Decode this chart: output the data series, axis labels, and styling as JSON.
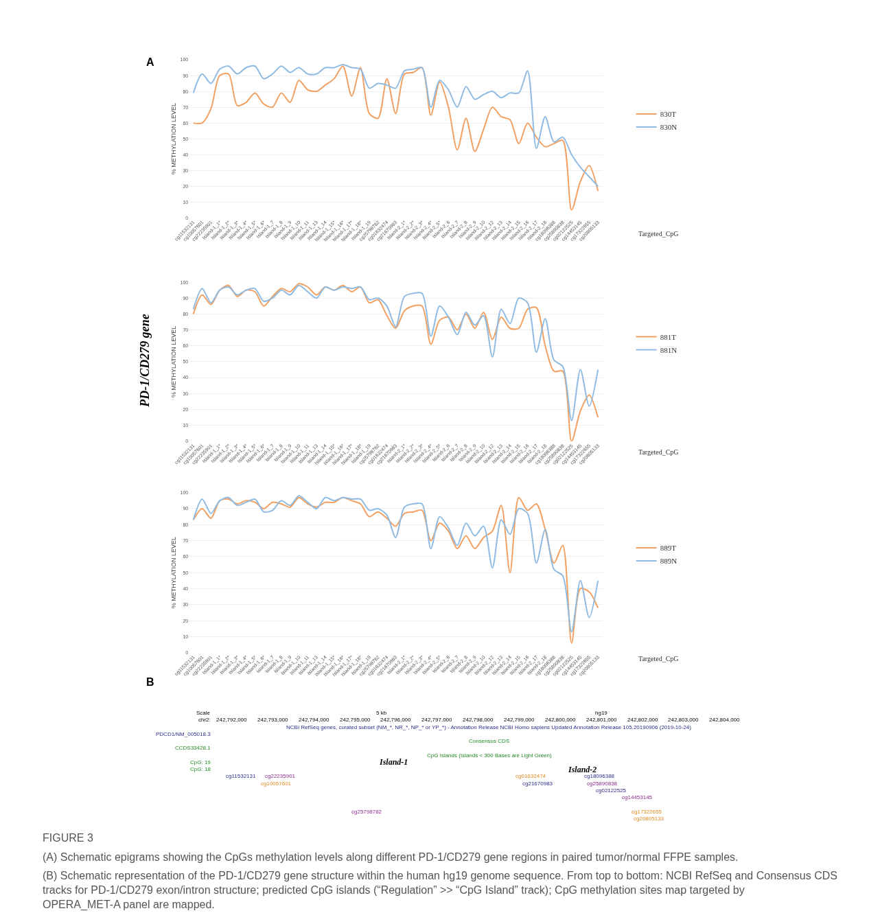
{
  "chart_data": [
    {
      "type": "line",
      "ylabel": "% METHYLATION LEVEL",
      "xlabel": "Targeted_CpG",
      "ylim": [
        0,
        100
      ],
      "yticks": [
        0,
        10,
        20,
        30,
        40,
        50,
        60,
        70,
        80,
        90,
        100
      ],
      "grid": "y",
      "legend": "right",
      "annotations": [
        "A",
        "PD-1/CD279 gene"
      ],
      "categories": [
        "cg11532131",
        "cg10057601",
        "cg22235901",
        "Island-1_1*",
        "Island-1_2*",
        "Island-1_3*",
        "Island-1_4*",
        "Island-1_5*",
        "Island-1_6*",
        "Island-1_7",
        "Island-1_8",
        "Island-1_9",
        "Island-1_10",
        "Island-1_11",
        "Island-1_13",
        "Island-1_14",
        "Island-1_15*",
        "Island-1_16*",
        "Island-1_17*",
        "Island-1_18*",
        "Island-1_19",
        "cg25798782",
        "cg01632474",
        "cg21670983",
        "Island-2_1*",
        "Island-2_2*",
        "Island-2_3*",
        "Island-2_4*",
        "Island-2_5*",
        "Island-2_6",
        "Island-2_7",
        "Island-2_8",
        "Island-2_9",
        "Island-2_10",
        "Island-2_12",
        "Island-2_13",
        "Island-2_14",
        "Island-2_15",
        "Island-2_16",
        "Island-2_17",
        "Island-2_18",
        "cg18096388",
        "cg25890838",
        "cg02122525",
        "cg14453145",
        "cg17322655",
        "cg20805133"
      ],
      "series": [
        {
          "name": "830T",
          "color": "#f2a061",
          "values": [
            60,
            60,
            69,
            90,
            91,
            71,
            73,
            79,
            72,
            70,
            79,
            73,
            87,
            81,
            80,
            84,
            88,
            96,
            77,
            95,
            66,
            63,
            88,
            66,
            91,
            92,
            95,
            65,
            86,
            70,
            43,
            63,
            42,
            56,
            70,
            64,
            62,
            47,
            60,
            51,
            45,
            47,
            49,
            5,
            23,
            33,
            17
          ]
        },
        {
          "name": "830N",
          "color": "#8fbbe3",
          "values": [
            79,
            91,
            85,
            94,
            96,
            91,
            95,
            96,
            88,
            91,
            96,
            92,
            95,
            91,
            91,
            95,
            95,
            97,
            95,
            94,
            82,
            85,
            84,
            82,
            93,
            94,
            95,
            70,
            87,
            81,
            70,
            83,
            75,
            78,
            80,
            76,
            79,
            79,
            93,
            44,
            64,
            48,
            51,
            40,
            32,
            26,
            20
          ]
        }
      ]
    },
    {
      "type": "line",
      "ylabel": "% METHYLATION LEVEL",
      "xlabel": "Targeted_CpG",
      "ylim": [
        0,
        100
      ],
      "yticks": [
        0,
        10,
        20,
        30,
        40,
        50,
        60,
        70,
        80,
        90,
        100
      ],
      "grid": "y",
      "legend": "right",
      "categories": [
        "cg11532131",
        "cg10057601",
        "cg22235901",
        "Island-1_1*",
        "Island-1_2*",
        "Island-1_3*",
        "Island-1_4*",
        "Island-1_5*",
        "Island-1_6*",
        "Island-1_7",
        "Island-1_8",
        "Island-1_9",
        "Island-1_10",
        "Island-1_11",
        "Island-1_13",
        "Island-1_14",
        "Island-1_15*",
        "Island-1_16*",
        "Island-1_17*",
        "Island-1_18*",
        "Island-1_19",
        "cg25798782",
        "cg01632474",
        "cg21670983",
        "Island-2_1*",
        "Island-2_2*",
        "Island-2_3*",
        "Island-2_4*",
        "Island-2_5*",
        "Island-2_6",
        "Island-2_7",
        "Island-2_8",
        "Island-2_9",
        "Island-2_10",
        "Island-2_12",
        "Island-2_13",
        "Island-2_14",
        "Island-2_15",
        "Island-2_16",
        "Island-2_17",
        "Island-2_18",
        "cg18096388",
        "cg25890838",
        "cg02122525",
        "cg14453145",
        "cg17322655",
        "cg20805133"
      ],
      "series": [
        {
          "name": "881T",
          "color": "#f2a061",
          "values": [
            80,
            92,
            86,
            95,
            98,
            91,
            95,
            94,
            85,
            91,
            96,
            94,
            99,
            97,
            92,
            97,
            95,
            98,
            94,
            97,
            87,
            89,
            79,
            71,
            82,
            85,
            85,
            61,
            76,
            78,
            70,
            80,
            71,
            81,
            64,
            78,
            71,
            71,
            83,
            84,
            60,
            44,
            44,
            0,
            19,
            29,
            15
          ]
        },
        {
          "name": "881N",
          "color": "#8fbbe3",
          "values": [
            83,
            96,
            87,
            95,
            97,
            92,
            95,
            96,
            88,
            90,
            95,
            92,
            98,
            94,
            90,
            97,
            95,
            97,
            96,
            97,
            89,
            90,
            85,
            72,
            91,
            93,
            93,
            66,
            85,
            78,
            67,
            81,
            73,
            79,
            53,
            83,
            74,
            90,
            87,
            56,
            77,
            51,
            47,
            13,
            45,
            22,
            45
          ]
        }
      ]
    },
    {
      "type": "line",
      "ylabel": "% METHYLATION LEVEL",
      "xlabel": "Targeted_CpG",
      "ylim": [
        0,
        100
      ],
      "yticks": [
        0,
        10,
        20,
        30,
        40,
        50,
        60,
        70,
        80,
        90,
        100
      ],
      "grid": "y",
      "legend": "right",
      "categories": [
        "cg11532131",
        "cg10057601",
        "cg22235901",
        "Island-1_1*",
        "Island-1_2*",
        "Island-1_3*",
        "Island-1_4*",
        "Island-1_5*",
        "Island-1_6*",
        "Island-1_7",
        "Island-1_8",
        "Island-1_9",
        "Island-1_10",
        "Island-1_11",
        "Island-1_13",
        "Island-1_14",
        "Island-1_15*",
        "Island-1_16*",
        "Island-1_17*",
        "Island-1_18*",
        "Island-1_19",
        "cg25798782",
        "cg01632474",
        "cg21670983",
        "Island-2_1*",
        "Island-2_2*",
        "Island-2_3*",
        "Island-2_4*",
        "Island-2_5*",
        "Island-2_6",
        "Island-2_7",
        "Island-2_8",
        "Island-2_9",
        "Island-2_10",
        "Island-2_12",
        "Island-2_13",
        "Island-2_14",
        "Island-2_15",
        "Island-2_16",
        "Island-2_17",
        "Island-2_18",
        "cg18096388",
        "cg25890838",
        "cg02122525",
        "cg14453145",
        "cg17322655",
        "cg20805133"
      ],
      "series": [
        {
          "name": "889T",
          "color": "#f2a061",
          "values": [
            83,
            90,
            84,
            95,
            96,
            93,
            95,
            94,
            90,
            94,
            93,
            91,
            97,
            93,
            91,
            94,
            94,
            97,
            95,
            93,
            85,
            88,
            84,
            79,
            87,
            88,
            89,
            70,
            81,
            76,
            65,
            73,
            65,
            72,
            76,
            92,
            50,
            97,
            89,
            93,
            77,
            56,
            67,
            6,
            40,
            38,
            28
          ]
        },
        {
          "name": "889N",
          "color": "#8fbbe3",
          "values": [
            83,
            96,
            87,
            95,
            97,
            92,
            94,
            96,
            88,
            89,
            95,
            92,
            98,
            94,
            90,
            97,
            95,
            97,
            96,
            96,
            89,
            90,
            86,
            72,
            91,
            93,
            93,
            65,
            85,
            78,
            67,
            81,
            73,
            79,
            53,
            83,
            74,
            90,
            87,
            56,
            77,
            52,
            48,
            13,
            45,
            22,
            45
          ]
        }
      ]
    },
    {
      "type": "other",
      "annotations": [
        "B",
        "242,792,000",
        "242,793,000",
        "242,794,000",
        "242,795,000",
        "242,796,000",
        "242,797,000",
        "242,798,000",
        "242,799,000",
        "242,800,000",
        "242,801,000",
        "242,802,000",
        "242,803,000",
        "242,804,000",
        "Scale",
        "chr2:",
        "PDCD1/NM_005018.3",
        "CCDS33428.1",
        "CpG: 19",
        "CpG: 18",
        "5 kb",
        "hg19",
        "NCBI RefSeq genes, curated subset (NM_*, NR_*, NP_* or YP_*) - Annotation Release NCBI Homo sapiens Updated Annotation Release 105.20190906 (2019-10-24)",
        "Consensus CDS",
        "CpG Islands (Islands < 300 Bases are Light Green)",
        "Island-1",
        "Island-2",
        "cg11532131",
        "cg22235901",
        "cg10057601",
        "cg25798782",
        "cg01632474",
        "cg21670983",
        "cg18096388",
        "cg25890838",
        "cg02122525",
        "cg14453145",
        "cg17322655",
        "cg20805133",
        "FIGURE 3",
        "(A) Schematic epigrams showing the CpGs methylation levels along different PD-1/CD279 gene regions in paired tumor/normal FFPE samples.",
        "(B) Schematic representation of the PD-1/CD279 gene structure within the human hg19 genome sequence. From top to bottom: NCBI RefSeq and Consensus CDS tracks for PD-1/CD279 exon/intron structure; predicted CpG islands (“Regulation” >> “CpG Island” track); CpG methylation sites map targeted by OPERA_MET-A panel are mapped."
      ]
    }
  ]
}
